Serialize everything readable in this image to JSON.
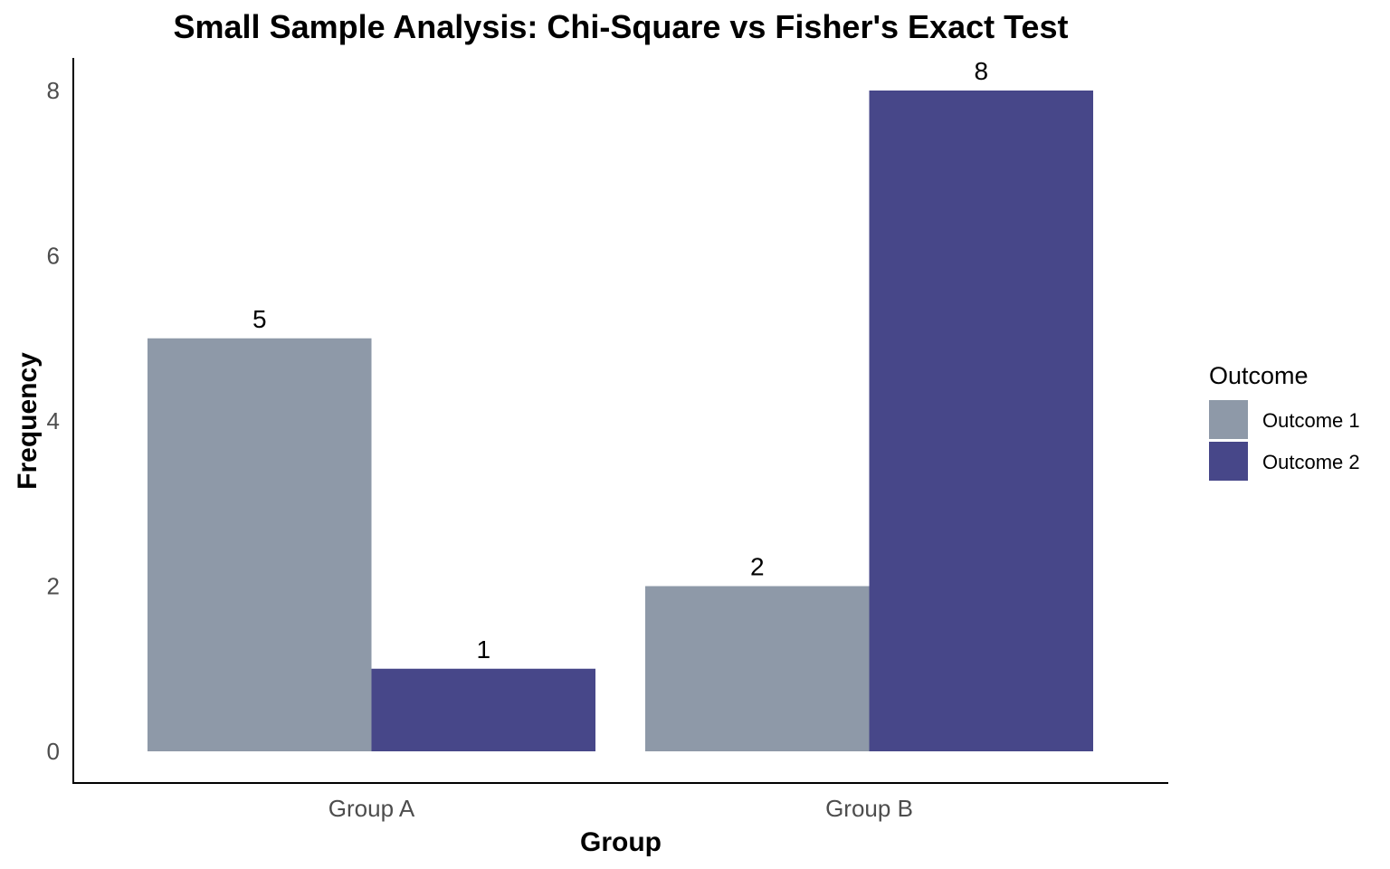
{
  "chart_data": {
    "type": "bar",
    "title": "Small Sample Analysis: Chi-Square vs Fisher's Exact Test",
    "xlabel": "Group",
    "ylabel": "Frequency",
    "categories": [
      "Group A",
      "Group B"
    ],
    "series": [
      {
        "name": "Outcome 1",
        "values": [
          5,
          2
        ],
        "color": "#8e99a8"
      },
      {
        "name": "Outcome 2",
        "values": [
          1,
          8
        ],
        "color": "#474789"
      }
    ],
    "ylim": [
      0,
      8.4
    ],
    "yticks": [
      0,
      2,
      4,
      6,
      8
    ],
    "grid": false,
    "legend": {
      "title": "Outcome",
      "position": "right"
    },
    "data_labels": true
  }
}
